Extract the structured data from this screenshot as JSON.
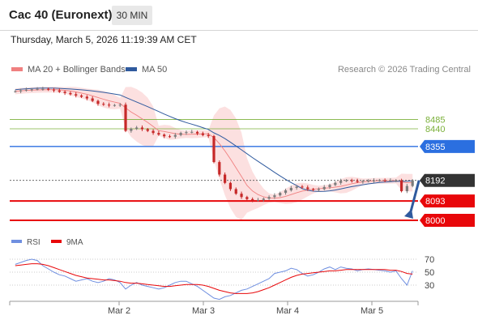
{
  "header": {
    "instrument": "Cac 40 (Euronext)",
    "timeframe": "30 MIN",
    "datetime": "Thursday, March 5, 2026 11:19:39 AM CET"
  },
  "legend": {
    "ma20": "MA 20 + Bollinger Bands",
    "ma50": "MA 50",
    "credit": "Research © 2026 Trading Central",
    "rsi": "RSI",
    "ma9": "9MA"
  },
  "colors": {
    "ma20": "#f08080",
    "ma50": "#2f5a9e",
    "band": "#fbdada",
    "up": "#7a7a7a",
    "down": "#c62828",
    "resistance_green": "#7bb03a",
    "blue_level": "#2b6fe0",
    "support_red": "#e8070a",
    "current": "#333333",
    "rsi": "#6f8fe0",
    "rsi_ma": "#e8070a"
  },
  "chart_data": [
    {
      "type": "line",
      "title": "Cac 40 (Euronext)",
      "timeframe": "30 MIN",
      "x_tick_labels": [
        "Mar 2",
        "Mar 3",
        "Mar 4",
        "Mar 5"
      ],
      "y_range": [
        7965,
        8440
      ],
      "levels": [
        {
          "value": 8485,
          "label": "8485",
          "kind": "resistance"
        },
        {
          "value": 8440,
          "label": "8440",
          "kind": "resistance"
        },
        {
          "value": 8355,
          "label": "8355",
          "kind": "pivot"
        },
        {
          "value": 8192,
          "label": "8192",
          "kind": "current"
        },
        {
          "value": 8093,
          "label": "8093",
          "kind": "support"
        },
        {
          "value": 8000,
          "label": "8000",
          "kind": "support"
        }
      ],
      "series": [
        {
          "name": "MA 20 + Bollinger Bands"
        },
        {
          "name": "MA 50"
        }
      ],
      "close_values": [
        8620,
        8625,
        8628,
        8630,
        8632,
        8632,
        8628,
        8624,
        8618,
        8612,
        8606,
        8600,
        8594,
        8586,
        8574,
        8560,
        8556,
        8552,
        8554,
        8556,
        8430,
        8440,
        8446,
        8438,
        8430,
        8420,
        8412,
        8404,
        8402,
        8410,
        8420,
        8424,
        8425,
        8418,
        8410,
        8405,
        8280,
        8220,
        8180,
        8150,
        8128,
        8112,
        8102,
        8096,
        8098,
        8104,
        8112,
        8120,
        8132,
        8144,
        8156,
        8162,
        8158,
        8150,
        8146,
        8150,
        8160,
        8170,
        8180,
        8190,
        8192,
        8190,
        8185,
        8188,
        8190,
        8192,
        8193,
        8192,
        8192,
        8192,
        8140,
        8165,
        8192
      ],
      "forecast": {
        "from": 8192,
        "to": 8000,
        "direction": "down"
      }
    },
    {
      "type": "line",
      "title": "RSI",
      "series": [
        {
          "name": "RSI"
        },
        {
          "name": "9MA"
        }
      ],
      "y_ticks": [
        70,
        50,
        30
      ],
      "y_range": [
        0,
        100
      ],
      "rsi_values": [
        62,
        65,
        68,
        70,
        68,
        60,
        55,
        50,
        46,
        44,
        40,
        36,
        38,
        40,
        36,
        34,
        36,
        40,
        38,
        34,
        24,
        30,
        34,
        30,
        28,
        26,
        24,
        26,
        30,
        34,
        36,
        36,
        32,
        28,
        22,
        16,
        10,
        8,
        12,
        14,
        18,
        22,
        24,
        28,
        32,
        36,
        40,
        48,
        50,
        52,
        56,
        54,
        48,
        44,
        46,
        50,
        55,
        58,
        54,
        58,
        56,
        55,
        52,
        54,
        55,
        54,
        53,
        52,
        50,
        52,
        40,
        30,
        52
      ],
      "ma9_values": [
        60,
        61,
        62,
        63,
        63,
        62,
        60,
        57,
        54,
        51,
        48,
        45,
        43,
        41,
        40,
        39,
        38,
        38,
        37,
        36,
        34,
        33,
        33,
        32,
        31,
        30,
        29,
        28,
        28,
        29,
        30,
        31,
        31,
        31,
        30,
        28,
        25,
        22,
        20,
        18,
        17,
        17,
        17,
        18,
        20,
        23,
        26,
        30,
        34,
        38,
        42,
        45,
        47,
        48,
        49,
        50,
        51,
        52,
        52,
        53,
        54,
        54,
        54,
        54,
        54,
        54,
        54,
        54,
        53,
        53,
        51,
        48,
        47
      ]
    }
  ]
}
